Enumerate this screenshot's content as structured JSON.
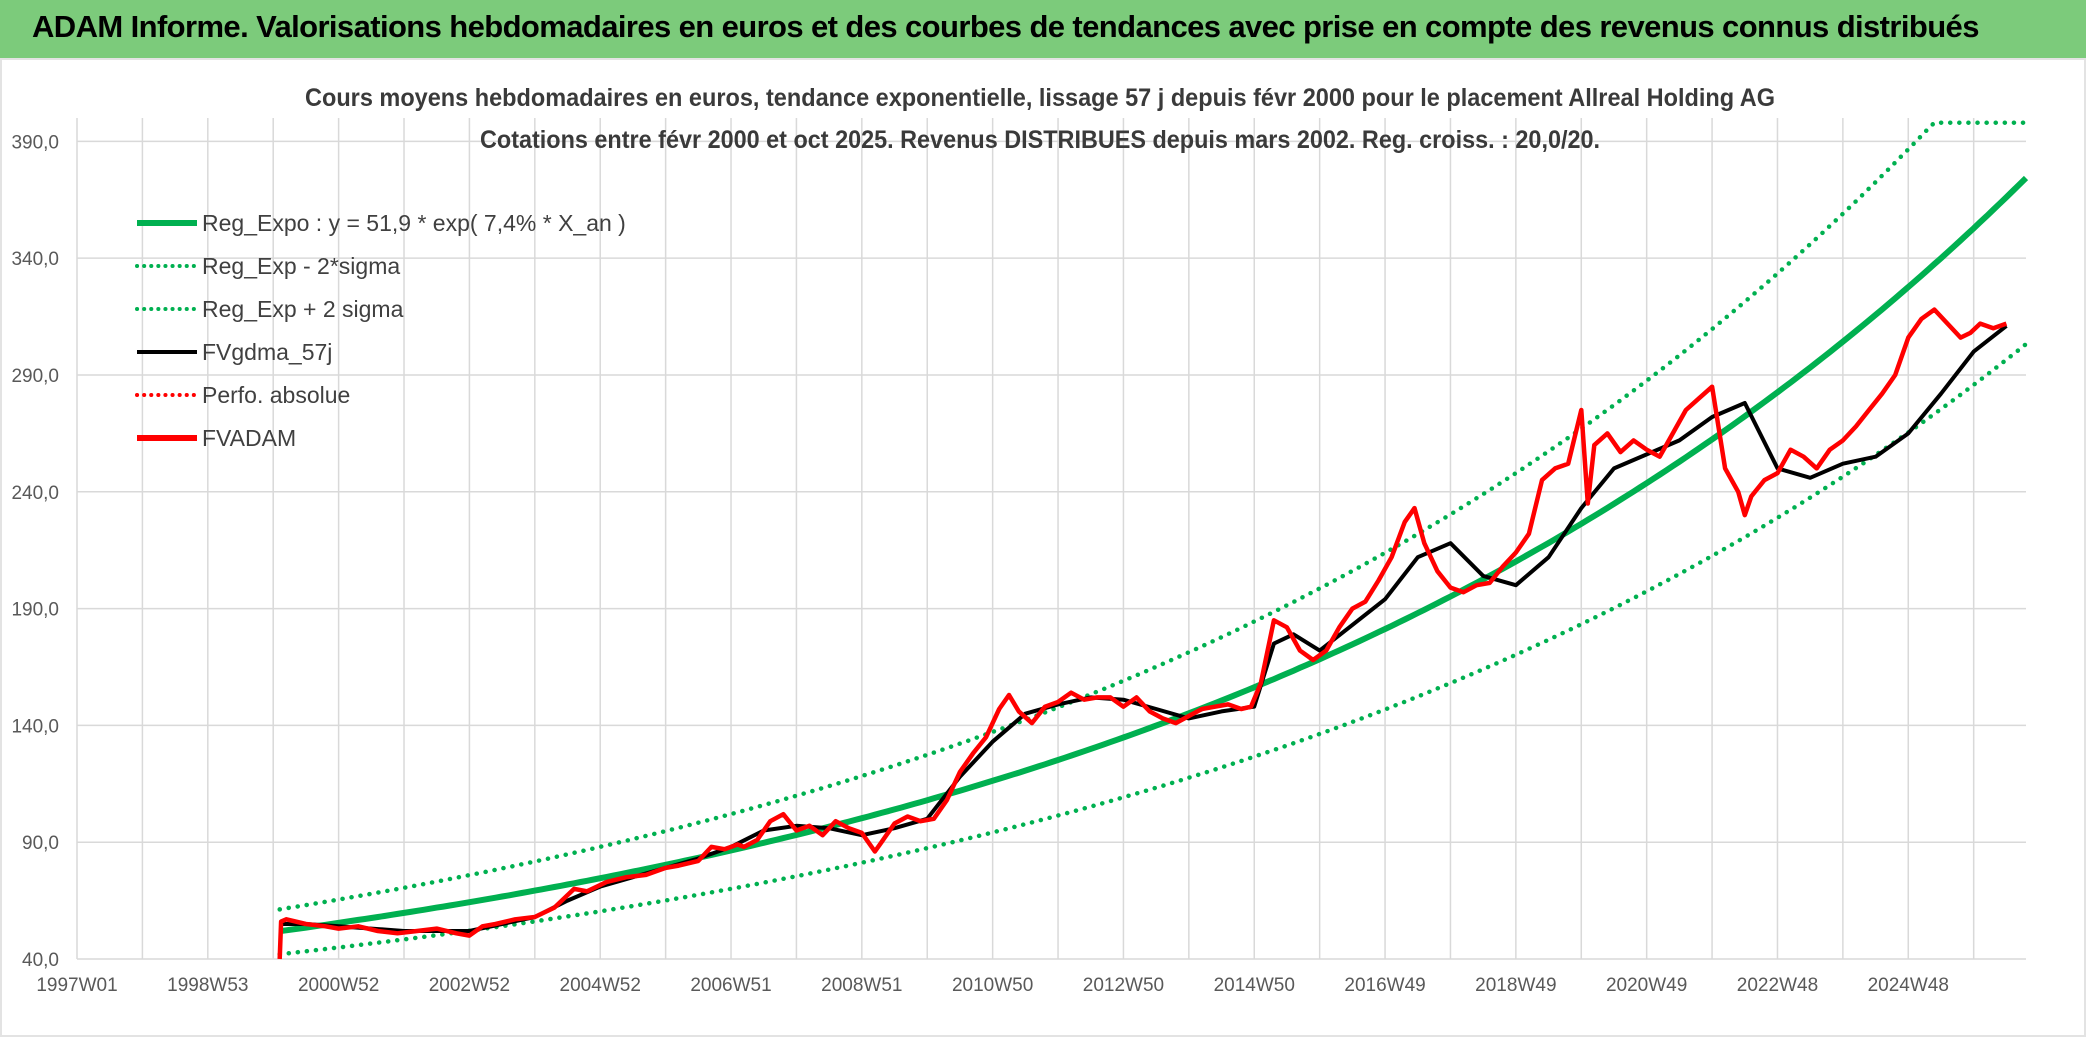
{
  "banner": {
    "title": "ADAM Informe. Valorisations hebdomadaires en euros et des courbes de tendances avec prise en compte des revenus connus distribués"
  },
  "colors": {
    "banner_bg": "#7ccb7b",
    "regression": "#00b050",
    "fvgdma": "#000000",
    "fvadam": "#ff0000",
    "grid": "#d9d9d9"
  },
  "chart_data": {
    "type": "line",
    "title_line1": "Cours moyens hebdomadaires en euros, tendance exponentielle, lissage 57 j depuis févr 2000 pour le placement Allreal Holding AG",
    "title_line2": "Cotations entre févr 2000 et oct 2025. Revenus DISTRIBUES depuis mars 2002. Reg. croiss. : 20,0/20.",
    "x_tick_labels": [
      "1997W01",
      "1998W53",
      "2000W52",
      "2002W52",
      "2004W52",
      "2006W51",
      "2008W51",
      "2010W50",
      "2012W50",
      "2014W50",
      "2016W49",
      "2018W49",
      "2020W49",
      "2022W48",
      "2024W48"
    ],
    "x_tick_years": [
      1997.0,
      1999.0,
      2001.0,
      2003.0,
      2005.0,
      2007.0,
      2009.0,
      2011.0,
      2013.0,
      2015.0,
      2017.0,
      2019.0,
      2021.0,
      2023.0,
      2025.0
    ],
    "xlim": [
      1997.0,
      2026.8
    ],
    "y_tick_labels": [
      "40,0",
      "90,0",
      "140,0",
      "190,0",
      "240,0",
      "290,0",
      "340,0",
      "390,0"
    ],
    "y_ticks": [
      40,
      90,
      140,
      190,
      240,
      290,
      340,
      390
    ],
    "ylim": [
      40,
      400
    ],
    "grid": true,
    "legend_position": "top-left",
    "legend": [
      {
        "label": "Reg_Expo : y = 51,9 * exp( 7,4% *  X_an )",
        "style": "solid-thick",
        "color": "#00b050"
      },
      {
        "label": "Reg_Exp - 2*sigma",
        "style": "dotted",
        "color": "#00b050"
      },
      {
        "label": "Reg_Exp + 2 sigma",
        "style": "dotted",
        "color": "#00b050"
      },
      {
        "label": "FVgdma_57j",
        "style": "solid",
        "color": "#000000"
      },
      {
        "label": "Perfo. absolue",
        "style": "dotted",
        "color": "#ff0000"
      },
      {
        "label": "FVADAM",
        "style": "solid-thick",
        "color": "#ff0000"
      }
    ],
    "regression": {
      "a": 51.9,
      "rate": 0.074,
      "start": 2000.1,
      "end": 2026.8
    },
    "band_lower_factor": 0.81,
    "band_upper_factor": 1.18,
    "band_cap": 398,
    "series": [
      {
        "name": "FVADAM",
        "x": [
          2000.1,
          2000.12,
          2000.2,
          2000.5,
          2000.8,
          2001.0,
          2001.3,
          2001.6,
          2001.9,
          2002.2,
          2002.5,
          2002.8,
          2003.0,
          2003.2,
          2003.4,
          2003.7,
          2004.0,
          2004.3,
          2004.6,
          2004.8,
          2005.1,
          2005.4,
          2005.7,
          2006.0,
          2006.2,
          2006.5,
          2006.7,
          2006.9,
          2007.1,
          2007.2,
          2007.4,
          2007.6,
          2007.8,
          2008.0,
          2008.2,
          2008.4,
          2008.6,
          2008.8,
          2009.0,
          2009.2,
          2009.3,
          2009.5,
          2009.7,
          2009.9,
          2010.1,
          2010.3,
          2010.5,
          2010.7,
          2010.9,
          2011.1,
          2011.25,
          2011.4,
          2011.6,
          2011.8,
          2012.0,
          2012.2,
          2012.4,
          2012.6,
          2012.8,
          2013.0,
          2013.2,
          2013.4,
          2013.6,
          2013.8,
          2014.0,
          2014.2,
          2014.4,
          2014.6,
          2014.8,
          2014.95,
          2015.1,
          2015.3,
          2015.5,
          2015.7,
          2015.9,
          2016.1,
          2016.3,
          2016.5,
          2016.7,
          2016.9,
          2017.1,
          2017.3,
          2017.45,
          2017.6,
          2017.8,
          2018.0,
          2018.2,
          2018.4,
          2018.6,
          2018.8,
          2019.0,
          2019.2,
          2019.4,
          2019.6,
          2019.8,
          2020.0,
          2020.1,
          2020.2,
          2020.4,
          2020.6,
          2020.8,
          2021.0,
          2021.2,
          2021.4,
          2021.6,
          2021.8,
          2022.0,
          2022.2,
          2022.4,
          2022.5,
          2022.6,
          2022.8,
          2023.0,
          2023.2,
          2023.4,
          2023.6,
          2023.8,
          2024.0,
          2024.2,
          2024.4,
          2024.6,
          2024.8,
          2025.0,
          2025.2,
          2025.4,
          2025.6,
          2025.8,
          2025.95,
          2026.1,
          2026.3,
          2026.5
        ],
        "y": [
          40,
          56,
          57,
          55,
          54,
          53,
          54,
          52,
          51,
          52,
          53,
          51,
          50,
          54,
          55,
          57,
          58,
          62,
          70,
          69,
          73,
          75,
          76,
          79,
          80,
          82,
          88,
          87,
          89,
          88,
          91,
          99,
          102,
          95,
          97,
          93,
          99,
          96,
          94,
          86,
          90,
          98,
          101,
          99,
          100,
          108,
          120,
          128,
          135,
          147,
          153,
          146,
          141,
          148,
          150,
          154,
          151,
          152,
          152,
          148,
          152,
          146,
          143,
          141,
          144,
          147,
          148,
          149,
          147,
          148,
          158,
          185,
          182,
          172,
          168,
          172,
          182,
          190,
          193,
          202,
          212,
          227,
          233,
          218,
          206,
          199,
          197,
          200,
          201,
          208,
          214,
          222,
          245,
          250,
          252,
          275,
          235,
          260,
          265,
          257,
          262,
          258,
          255,
          265,
          275,
          280,
          285,
          250,
          240,
          230,
          238,
          245,
          248,
          258,
          255,
          250,
          258,
          262,
          268,
          275,
          282,
          290,
          306,
          314,
          318,
          312,
          306,
          308,
          312,
          310,
          312
        ]
      },
      {
        "name": "FVgdma_57j",
        "x": [
          2000.1,
          2000.5,
          2001.0,
          2001.5,
          2002.0,
          2002.5,
          2003.0,
          2003.5,
          2004.0,
          2004.5,
          2005.0,
          2005.5,
          2006.0,
          2006.5,
          2007.0,
          2007.5,
          2008.0,
          2008.5,
          2009.0,
          2009.5,
          2010.0,
          2010.5,
          2011.0,
          2011.5,
          2012.0,
          2012.5,
          2013.0,
          2013.5,
          2014.0,
          2014.5,
          2015.0,
          2015.3,
          2015.6,
          2016.0,
          2016.5,
          2017.0,
          2017.5,
          2018.0,
          2018.5,
          2019.0,
          2019.5,
          2020.0,
          2020.5,
          2021.0,
          2021.5,
          2022.0,
          2022.5,
          2023.0,
          2023.5,
          2024.0,
          2024.5,
          2025.0,
          2025.5,
          2026.0,
          2026.5
        ],
        "y": [
          55,
          55,
          54,
          53,
          52,
          52,
          52,
          55,
          58,
          65,
          71,
          75,
          79,
          83,
          88,
          95,
          97,
          96,
          93,
          96,
          100,
          118,
          133,
          145,
          149,
          152,
          151,
          147,
          143,
          146,
          148,
          175,
          179,
          172,
          183,
          194,
          212,
          218,
          204,
          200,
          212,
          233,
          250,
          256,
          262,
          272,
          278,
          250,
          246,
          252,
          255,
          265,
          282,
          300,
          311
        ]
      }
    ]
  }
}
